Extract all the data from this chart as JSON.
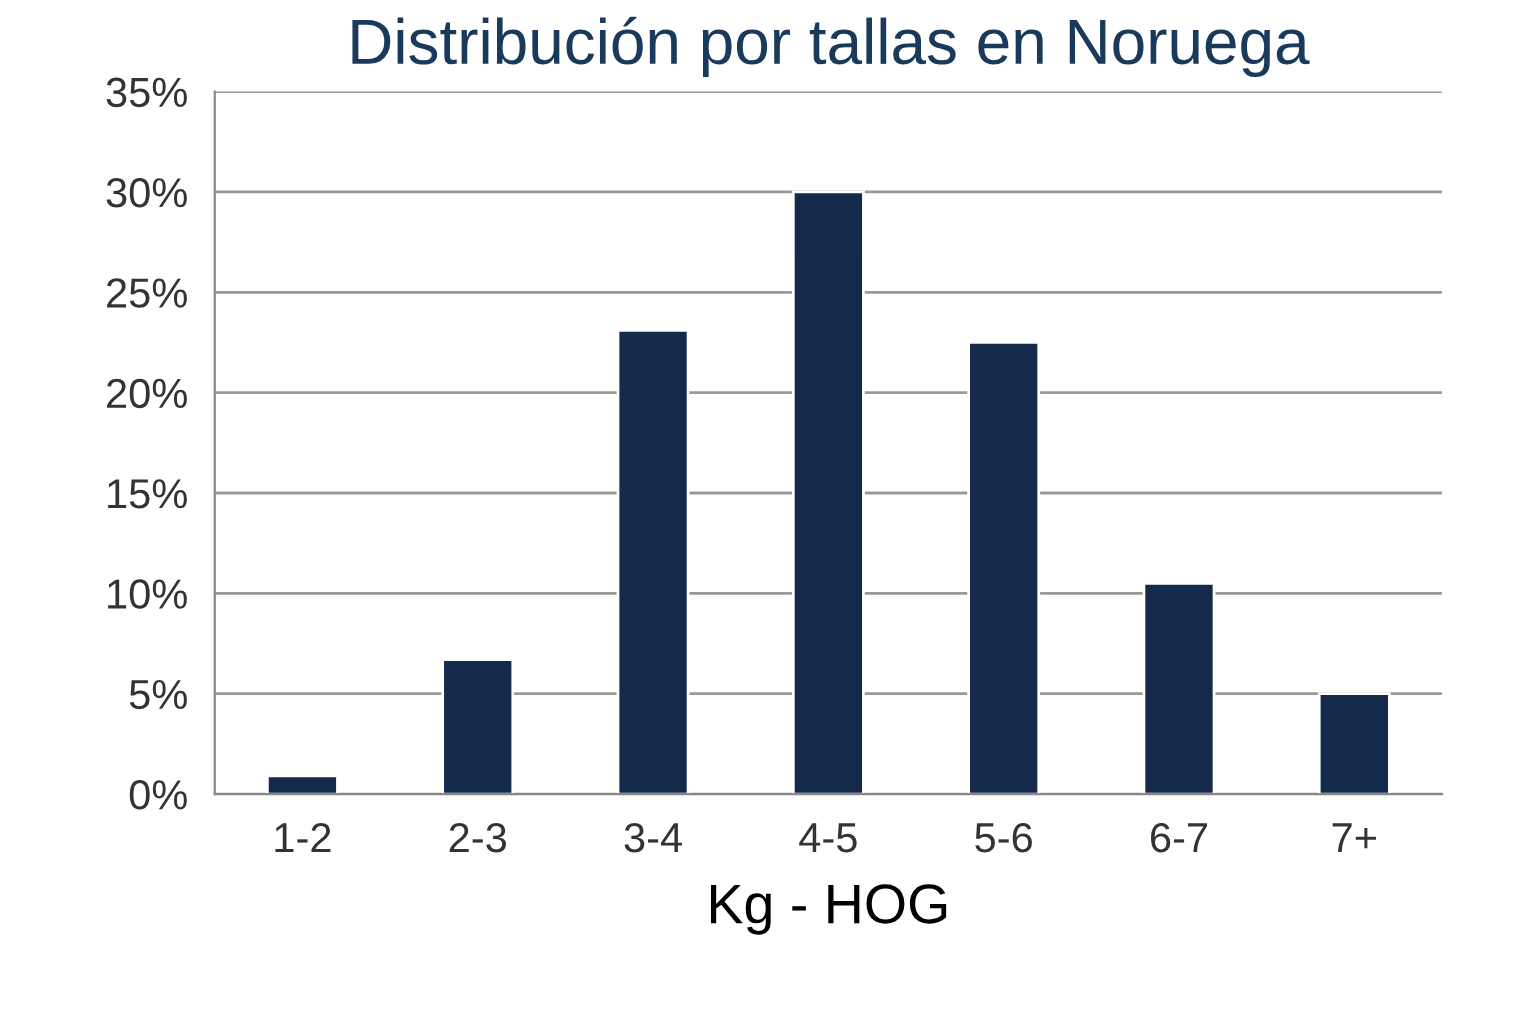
{
  "chart_data": {
    "type": "bar",
    "title": "Distribución por tallas en Noruega",
    "xlabel": "Kg - HOG",
    "categories": [
      "1-2",
      "2-3",
      "3-4",
      "4-5",
      "5-6",
      "6-7",
      "7+"
    ],
    "values": [
      0.9,
      6.7,
      23.1,
      30,
      22.5,
      10.5,
      5
    ],
    "color": "#132a4a",
    "ylim": [
      0,
      35
    ],
    "yticks": [
      {
        "value": 0,
        "label": "0%"
      },
      {
        "value": 5,
        "label": "5%"
      },
      {
        "value": 10,
        "label": "10%"
      },
      {
        "value": 15,
        "label": "15%"
      },
      {
        "value": 20,
        "label": "20%"
      },
      {
        "value": 25,
        "label": "25%"
      },
      {
        "value": 30,
        "label": "30%"
      },
      {
        "value": 35,
        "label": "35%"
      }
    ],
    "grid": "y",
    "legend": false
  }
}
